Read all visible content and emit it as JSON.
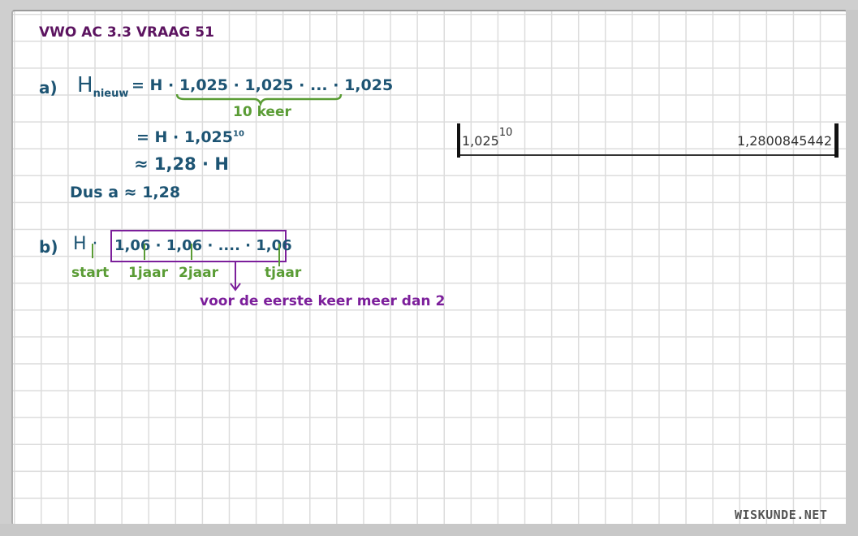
{
  "title": "VWO AC 3.3 VRAAG 51",
  "part_a": {
    "label": "a)",
    "line1_lhs": "H",
    "line1_sub": "nieuw",
    "line1_rhs": "= H · 1,025 · 1,025 · ... · 1,025",
    "brace_note": "10 keer",
    "line2": "= H · 1,025",
    "line2_exp": "10",
    "line3": "≈ 1,28 · H",
    "conclusion": "Dus a ≈ 1,28"
  },
  "part_b": {
    "label": "b)",
    "expression_start": "H ·",
    "expression_box": "1,06 · 1,06 · .... · 1,06",
    "tick_labels": [
      "start",
      "1jaar",
      "2jaar",
      "tjaar"
    ],
    "arrow_note": "voor de eerste keer meer dan 2"
  },
  "calculator": {
    "expression_base": "1,025",
    "expression_exponent": "10",
    "result": "1,2800845442"
  },
  "watermark": "WISKUNDE.NET",
  "colors": {
    "title": "#5c1460",
    "ink_blue": "#1d5473",
    "ink_green": "#5a9c35",
    "ink_violet": "#7c1f9b"
  }
}
